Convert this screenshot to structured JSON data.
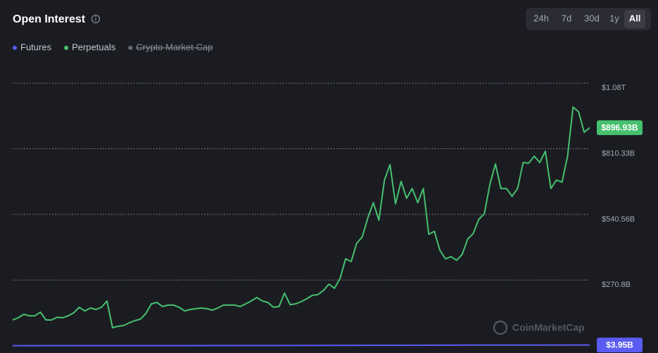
{
  "chart_data": {
    "type": "line",
    "title": "Open Interest",
    "range_options": [
      "24h",
      "7d",
      "30d",
      "1y",
      "All"
    ],
    "selected_range": "All",
    "watermark": "CoinMarketCap",
    "ylim": [
      0,
      1150
    ],
    "yticks": [
      {
        "value": 270.8,
        "label": "$270.8B"
      },
      {
        "value": 540.56,
        "label": "$540.56B"
      },
      {
        "value": 810.33,
        "label": "$810.33B"
      },
      {
        "value": 1080,
        "label": "$1.08T"
      }
    ],
    "grid": true,
    "series": [
      {
        "name": "Futures",
        "color": "#5a5cf2",
        "values": [
          1.1,
          1.4,
          1.8,
          2.6,
          3.4,
          3.95
        ],
        "last_value_label": "$3.95B"
      },
      {
        "name": "Perpetuals",
        "color": "#46c06e",
        "values": [
          107,
          116,
          130,
          124,
          124,
          139,
          107,
          107,
          118,
          116,
          124,
          136,
          159,
          144,
          156,
          150,
          159,
          185,
          75,
          81,
          84,
          95,
          104,
          110,
          133,
          173,
          179,
          162,
          168,
          168,
          159,
          144,
          150,
          153,
          156,
          153,
          147,
          156,
          168,
          168,
          168,
          162,
          173,
          185,
          199,
          185,
          179,
          159,
          162,
          217,
          170,
          173,
          182,
          194,
          208,
          211,
          228,
          254,
          237,
          277,
          358,
          347,
          422,
          448,
          526,
          589,
          517,
          682,
          745,
          584,
          676,
          607,
          647,
          589,
          647,
          459,
          471,
          393,
          358,
          367,
          352,
          376,
          439,
          462,
          520,
          543,
          664,
          748,
          647,
          647,
          615,
          647,
          754,
          751,
          780,
          754,
          800,
          647,
          682,
          673,
          780,
          982,
          962,
          878,
          896.93
        ],
        "last_value_label": "$896.93B"
      },
      {
        "name": "Crypto Market Cap",
        "color": "#6b6e78",
        "hidden": true,
        "values": []
      }
    ]
  }
}
